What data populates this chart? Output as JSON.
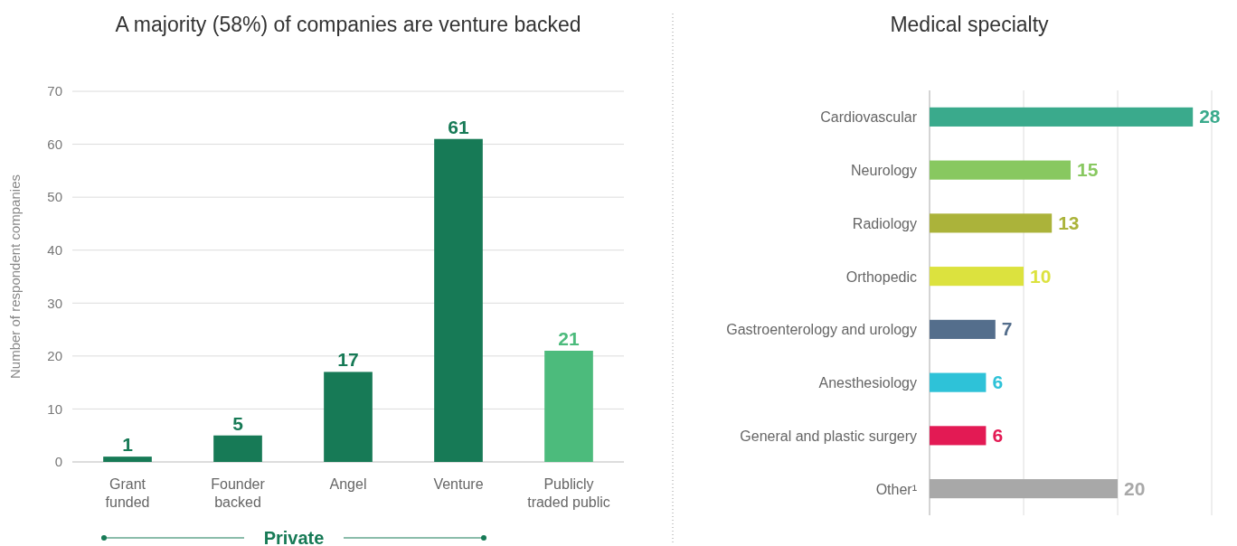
{
  "chart_data": [
    {
      "type": "bar",
      "title": "A majority (58%) of companies are venture backed",
      "ylabel": "Number of respondent companies",
      "categories": [
        "Grant funded",
        "Founder backed",
        "Angel",
        "Venture",
        "Publicly traded public"
      ],
      "values": [
        1,
        5,
        17,
        61,
        21
      ],
      "colors": [
        "#177a56",
        "#177a56",
        "#177a56",
        "#177a56",
        "#4cbb7c"
      ],
      "ylim": [
        0,
        70
      ],
      "yticks": [
        0,
        10,
        20,
        30,
        40,
        50,
        60,
        70
      ],
      "grid": "y",
      "data_labels": true,
      "annotations": [
        "Private"
      ]
    },
    {
      "type": "bar",
      "orientation": "horizontal",
      "title": "Medical specialty",
      "categories": [
        "Cardiovascular",
        "Neurology",
        "Radiology",
        "Orthopedic",
        "Gastroenterology and urology",
        "Anesthesiology",
        "General and plastic surgery",
        "Other¹"
      ],
      "values": [
        28,
        15,
        13,
        10,
        7,
        6,
        6,
        20
      ],
      "colors": [
        "#3aaa8c",
        "#88c860",
        "#abb33a",
        "#dce23e",
        "#546e8c",
        "#2ec2d8",
        "#e31a54",
        "#a8a8a8"
      ],
      "xlim": [
        0,
        30
      ],
      "xticks": [
        {
          "value": 0,
          "label": null
        },
        {
          "value": 10,
          "label": null
        },
        {
          "value": 20,
          "label": null
        },
        {
          "value": 30,
          "label": null
        }
      ],
      "grid": "x",
      "tick_labels": "y",
      "data_labels": true
    }
  ]
}
